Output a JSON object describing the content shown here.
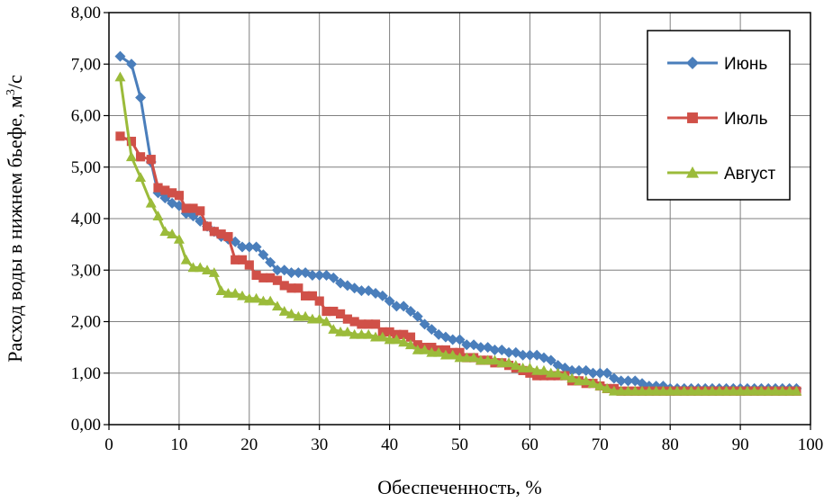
{
  "chart_data": {
    "type": "line",
    "xlabel": "Обеспеченность, %",
    "ylabel": "Расход воды в нижнем бьефе, м3/с",
    "ylabel_parts": {
      "before": "Расход воды в нижнем бьефе, м",
      "sup": "3",
      "after": "/с"
    },
    "xlim": [
      0,
      100
    ],
    "ylim": [
      0,
      8
    ],
    "x_ticks": [
      "0",
      "10",
      "20",
      "30",
      "40",
      "50",
      "60",
      "70",
      "80",
      "90",
      "100"
    ],
    "y_ticks": [
      "0,00",
      "1,00",
      "2,00",
      "3,00",
      "4,00",
      "5,00",
      "6,00",
      "7,00",
      "8,00"
    ],
    "grid": true,
    "legend_position": "top-right",
    "series": [
      {
        "name": "Июнь",
        "color": "#4a7ebb",
        "marker": "diamond",
        "x": [
          1.6,
          3.2,
          4.5,
          6,
          7,
          8,
          9,
          10,
          11,
          12,
          13,
          14,
          15,
          16,
          17,
          18,
          19,
          20,
          21,
          22,
          23,
          24,
          25,
          26,
          27,
          28,
          29,
          30,
          31,
          32,
          33,
          34,
          35,
          36,
          37,
          38,
          39,
          40,
          41,
          42,
          43,
          44,
          45,
          46,
          47,
          48,
          49,
          50,
          51,
          52,
          53,
          54,
          55,
          56,
          57,
          58,
          59,
          60,
          61,
          62,
          63,
          64,
          65,
          66,
          67,
          68,
          69,
          70,
          71,
          72,
          73,
          74,
          75,
          76,
          77,
          78,
          79,
          80,
          81,
          82,
          83,
          84,
          85,
          86,
          87,
          88,
          89,
          90,
          91,
          92,
          93,
          94,
          95,
          96,
          97,
          98
        ],
        "y": [
          7.15,
          7.0,
          6.35,
          5.1,
          4.5,
          4.4,
          4.3,
          4.25,
          4.1,
          4.05,
          3.95,
          3.85,
          3.75,
          3.65,
          3.6,
          3.55,
          3.45,
          3.45,
          3.45,
          3.3,
          3.15,
          3.0,
          3.0,
          2.95,
          2.95,
          2.95,
          2.9,
          2.9,
          2.9,
          2.85,
          2.75,
          2.7,
          2.65,
          2.6,
          2.6,
          2.55,
          2.5,
          2.4,
          2.3,
          2.3,
          2.2,
          2.1,
          1.95,
          1.85,
          1.75,
          1.7,
          1.65,
          1.65,
          1.55,
          1.55,
          1.5,
          1.5,
          1.45,
          1.45,
          1.4,
          1.4,
          1.35,
          1.35,
          1.35,
          1.3,
          1.25,
          1.15,
          1.1,
          1.05,
          1.05,
          1.05,
          1.0,
          1.0,
          1.0,
          0.9,
          0.85,
          0.85,
          0.85,
          0.8,
          0.75,
          0.75,
          0.75,
          0.7,
          0.7,
          0.7,
          0.7,
          0.7,
          0.7,
          0.7,
          0.7,
          0.7,
          0.7,
          0.7,
          0.7,
          0.7,
          0.7,
          0.7,
          0.7,
          0.7,
          0.7,
          0.7
        ]
      },
      {
        "name": "Июль",
        "color": "#d05048",
        "marker": "square",
        "x": [
          1.6,
          3.2,
          4.5,
          6,
          7,
          8,
          9,
          10,
          11,
          12,
          13,
          14,
          15,
          16,
          17,
          18,
          19,
          20,
          21,
          22,
          23,
          24,
          25,
          26,
          27,
          28,
          29,
          30,
          31,
          32,
          33,
          34,
          35,
          36,
          37,
          38,
          39,
          40,
          41,
          42,
          43,
          44,
          45,
          46,
          47,
          48,
          49,
          50,
          51,
          52,
          53,
          54,
          55,
          56,
          57,
          58,
          59,
          60,
          61,
          62,
          63,
          64,
          65,
          66,
          67,
          68,
          69,
          70,
          71,
          72,
          73,
          74,
          75,
          76,
          77,
          78,
          79,
          80,
          81,
          82,
          83,
          84,
          85,
          86,
          87,
          88,
          89,
          90,
          91,
          92,
          93,
          94,
          95,
          96,
          97,
          98
        ],
        "y": [
          5.6,
          5.5,
          5.2,
          5.15,
          4.6,
          4.55,
          4.5,
          4.45,
          4.2,
          4.2,
          4.15,
          3.85,
          3.75,
          3.7,
          3.65,
          3.2,
          3.2,
          3.1,
          2.9,
          2.85,
          2.85,
          2.8,
          2.7,
          2.65,
          2.65,
          2.5,
          2.5,
          2.4,
          2.2,
          2.2,
          2.15,
          2.05,
          2.0,
          1.95,
          1.95,
          1.95,
          1.8,
          1.8,
          1.75,
          1.75,
          1.7,
          1.55,
          1.5,
          1.5,
          1.45,
          1.45,
          1.4,
          1.4,
          1.3,
          1.3,
          1.25,
          1.25,
          1.2,
          1.2,
          1.15,
          1.1,
          1.05,
          1.0,
          0.95,
          0.95,
          0.95,
          0.95,
          0.95,
          0.85,
          0.85,
          0.8,
          0.8,
          0.75,
          0.7,
          0.7,
          0.65,
          0.65,
          0.65,
          0.65,
          0.65,
          0.65,
          0.65,
          0.65,
          0.65,
          0.65,
          0.65,
          0.65,
          0.65,
          0.65,
          0.65,
          0.65,
          0.65,
          0.65,
          0.65,
          0.65,
          0.65,
          0.65,
          0.65,
          0.65,
          0.65,
          0.65
        ]
      },
      {
        "name": "Август",
        "color": "#9bbb3a",
        "marker": "triangle",
        "x": [
          1.6,
          3.2,
          4.5,
          6,
          7,
          8,
          9,
          10,
          11,
          12,
          13,
          14,
          15,
          16,
          17,
          18,
          19,
          20,
          21,
          22,
          23,
          24,
          25,
          26,
          27,
          28,
          29,
          30,
          31,
          32,
          33,
          34,
          35,
          36,
          37,
          38,
          39,
          40,
          41,
          42,
          43,
          44,
          45,
          46,
          47,
          48,
          49,
          50,
          51,
          52,
          53,
          54,
          55,
          56,
          57,
          58,
          59,
          60,
          61,
          62,
          63,
          64,
          65,
          66,
          67,
          68,
          69,
          70,
          71,
          72,
          73,
          74,
          75,
          76,
          77,
          78,
          79,
          80,
          81,
          82,
          83,
          84,
          85,
          86,
          87,
          88,
          89,
          90,
          91,
          92,
          93,
          94,
          95,
          96,
          97,
          98
        ],
        "y": [
          6.75,
          5.2,
          4.8,
          4.3,
          4.05,
          3.75,
          3.7,
          3.6,
          3.2,
          3.05,
          3.05,
          3.0,
          2.95,
          2.6,
          2.55,
          2.55,
          2.5,
          2.45,
          2.45,
          2.4,
          2.4,
          2.3,
          2.2,
          2.15,
          2.1,
          2.1,
          2.05,
          2.05,
          2.0,
          1.85,
          1.8,
          1.8,
          1.75,
          1.75,
          1.75,
          1.7,
          1.7,
          1.65,
          1.65,
          1.6,
          1.55,
          1.45,
          1.45,
          1.4,
          1.4,
          1.35,
          1.35,
          1.3,
          1.3,
          1.3,
          1.25,
          1.25,
          1.25,
          1.2,
          1.2,
          1.15,
          1.1,
          1.1,
          1.05,
          1.05,
          1.0,
          1.0,
          0.95,
          0.9,
          0.85,
          0.85,
          0.8,
          0.75,
          0.7,
          0.65,
          0.65,
          0.65,
          0.65,
          0.65,
          0.65,
          0.65,
          0.65,
          0.65,
          0.65,
          0.65,
          0.65,
          0.65,
          0.65,
          0.65,
          0.65,
          0.65,
          0.65,
          0.65,
          0.65,
          0.65,
          0.65,
          0.65,
          0.65,
          0.65,
          0.65,
          0.65
        ]
      }
    ]
  }
}
